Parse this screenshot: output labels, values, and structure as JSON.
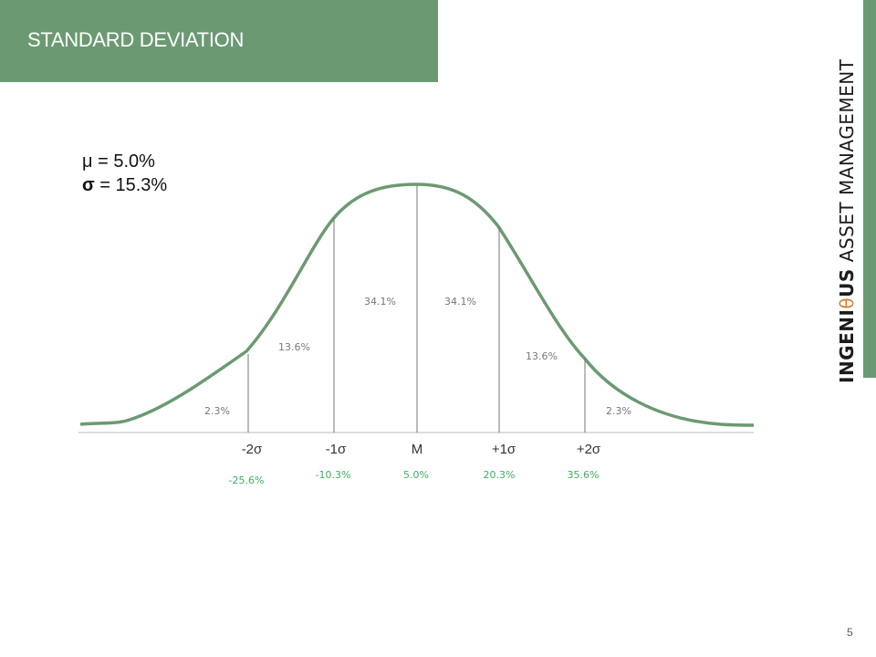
{
  "slide": {
    "title": "STANDARD DEVIATION",
    "page_number": "5"
  },
  "brand": {
    "part1": "INGENI",
    "theta": "θ",
    "part2": "US",
    "part3": " ASSET MANAGEMENT"
  },
  "stats": {
    "mu_label": "μ = 5.0%",
    "sigma_symbol": "σ",
    "sigma_rest": " = 15.3%"
  },
  "colors": {
    "accent": "#6b9a72",
    "curve": "#6b9a72",
    "value_green": "#3fae5e",
    "brand_theta": "#e07b2e"
  },
  "diagram": {
    "region_percents": [
      "2.3%",
      "13.6%",
      "34.1%",
      "34.1%",
      "13.6%",
      "2.3%"
    ],
    "sigma_labels": [
      "-2σ",
      "-1σ",
      "M",
      "+1σ",
      "+2σ"
    ],
    "values": [
      "-25.6%",
      "-10.3%",
      "5.0%",
      "20.3%",
      "35.6%"
    ]
  }
}
